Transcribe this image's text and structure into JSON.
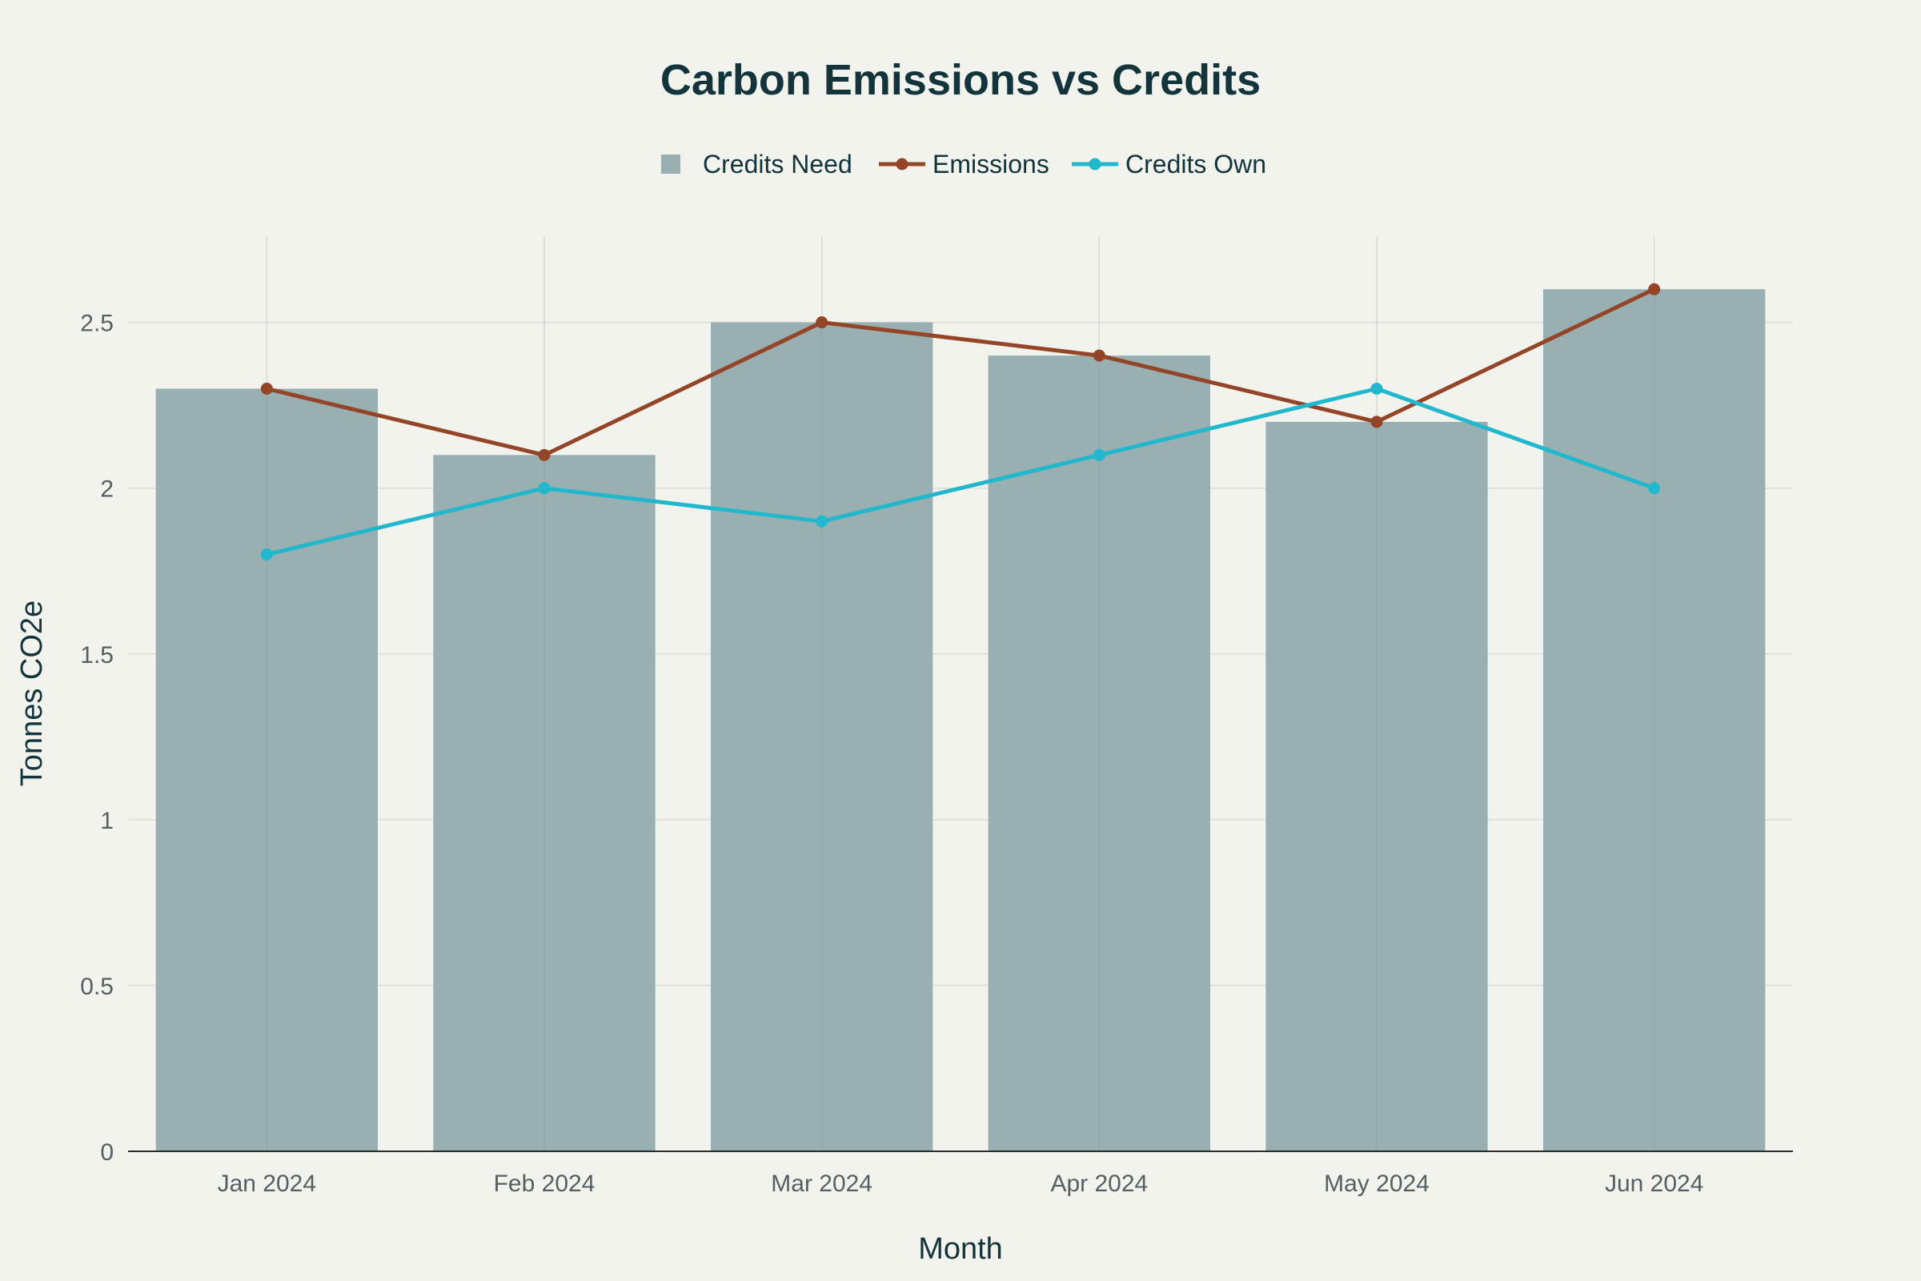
{
  "chart_data": {
    "type": "bar",
    "title": "Carbon Emissions vs Credits",
    "xlabel": "Month",
    "ylabel": "Tonnes CO2e",
    "categories": [
      "Jan 2024",
      "Feb 2024",
      "Mar 2024",
      "Apr 2024",
      "May 2024",
      "Jun 2024"
    ],
    "ylim": [
      0,
      2.76
    ],
    "yticks": [
      0,
      0.5,
      1,
      1.5,
      2,
      2.5
    ],
    "ytick_labels": [
      "0",
      "0.5",
      "1",
      "1.5",
      "2",
      "2.5"
    ],
    "grid": true,
    "legend_position": "top-center",
    "series": [
      {
        "name": "Credits Need",
        "type": "bar",
        "color": "#98b0b2",
        "values": [
          2.3,
          2.1,
          2.5,
          2.4,
          2.2,
          2.6
        ]
      },
      {
        "name": "Emissions",
        "type": "line",
        "color": "#944427",
        "values": [
          2.3,
          2.1,
          2.5,
          2.4,
          2.2,
          2.6
        ]
      },
      {
        "name": "Credits Own",
        "type": "line",
        "color": "#21b8cd",
        "values": [
          1.8,
          2.0,
          1.9,
          2.1,
          2.3,
          2.0
        ]
      }
    ]
  }
}
